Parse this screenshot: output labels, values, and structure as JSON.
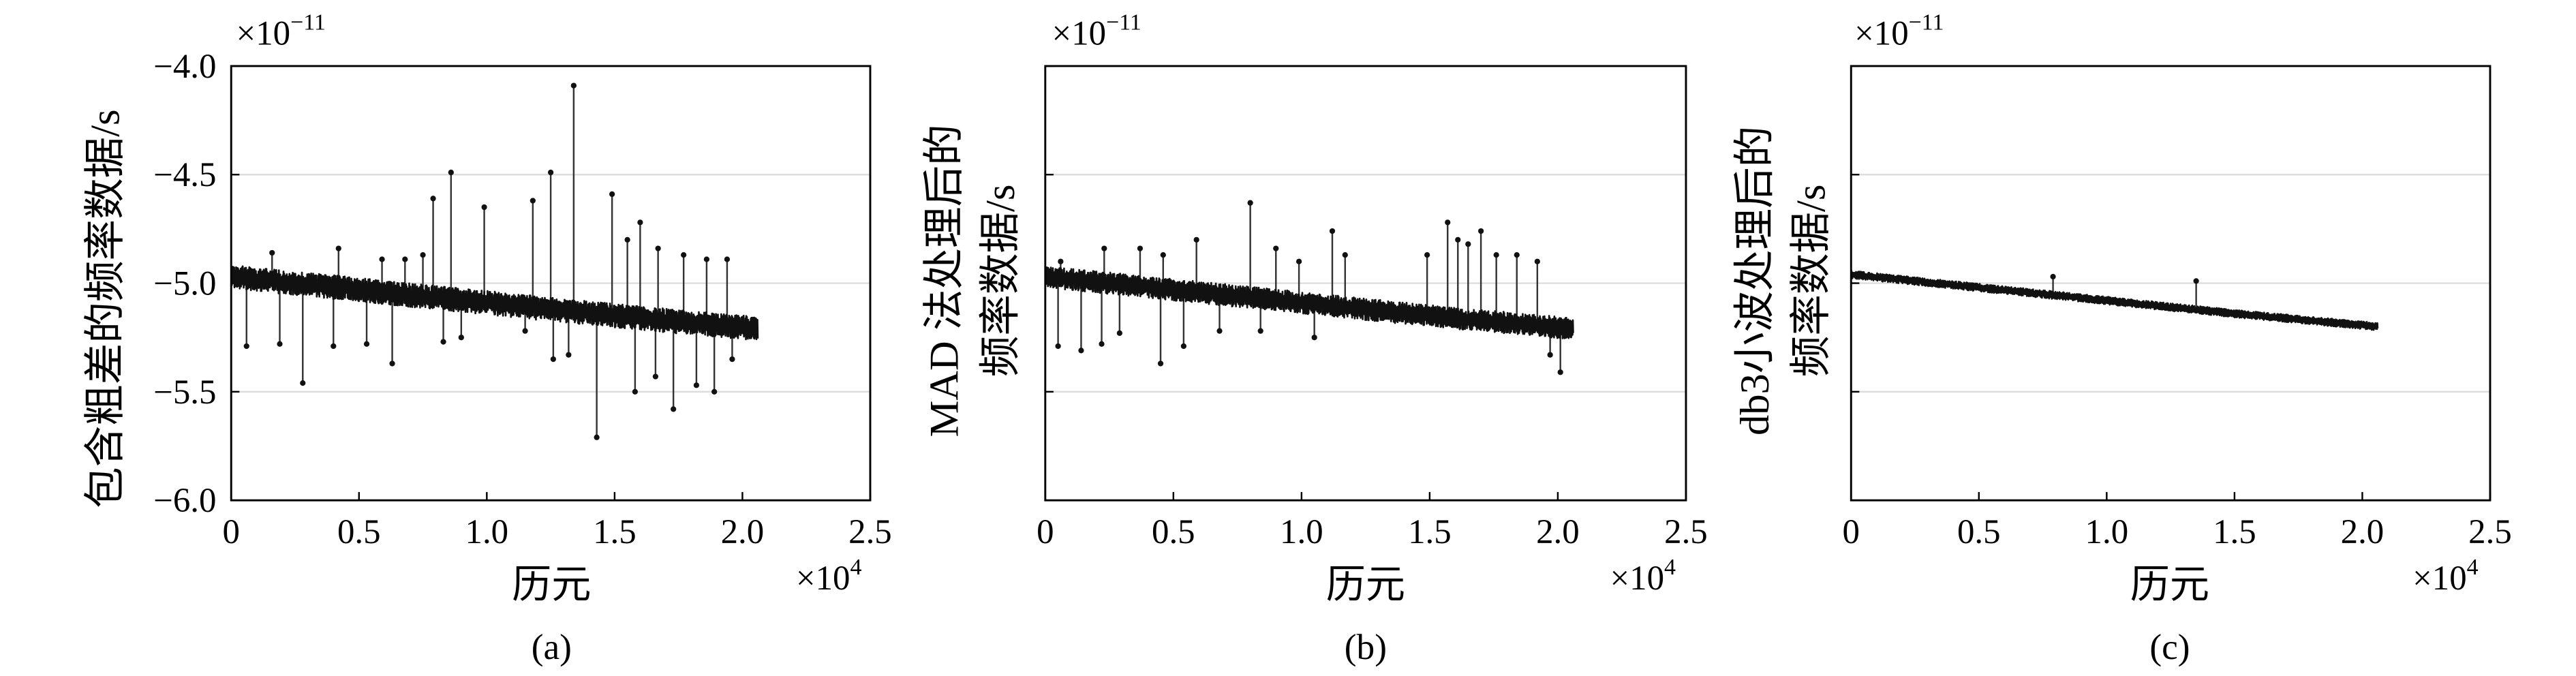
{
  "colors": {
    "line": "#111111",
    "outlier": "#333333",
    "grid": "#dddddd",
    "axis": "#000000"
  },
  "chart_data": [
    {
      "type": "line",
      "caption": "(a)",
      "xlabel": "历元",
      "ylabel_lines": [
        "包含粗差的频率数据/s"
      ],
      "x_multiplier": {
        "base": "×10",
        "exponent": "4"
      },
      "y_multiplier": {
        "base": "×10",
        "exponent": "−11"
      },
      "xlim": [
        0,
        2.5
      ],
      "ylim": [
        -6.0,
        -4.0
      ],
      "xticks": [
        0,
        0.5,
        1.0,
        1.5,
        2.0,
        2.5
      ],
      "xtick_labels": [
        "0",
        "0.5",
        "1.0",
        "1.5",
        "2.0",
        "2.5"
      ],
      "yticks": [
        -4.0,
        -4.5,
        -5.0,
        -5.5,
        -6.0
      ],
      "ytick_labels": [
        "−4.0",
        "−4.5",
        "−5.0",
        "−5.5",
        "−6.0"
      ],
      "grid": "horizontal",
      "series": [
        {
          "x": [
            0,
            0.5,
            1.0,
            1.5,
            2.06
          ],
          "y": [
            -4.97,
            -5.03,
            -5.09,
            -5.15,
            -5.21
          ]
        }
      ],
      "outliers": [
        {
          "x": 0.16,
          "y": -4.86
        },
        {
          "x": 0.42,
          "y": -4.84
        },
        {
          "x": 0.59,
          "y": -4.89
        },
        {
          "x": 0.68,
          "y": -4.89
        },
        {
          "x": 0.75,
          "y": -4.87
        },
        {
          "x": 0.79,
          "y": -4.61
        },
        {
          "x": 0.86,
          "y": -4.49
        },
        {
          "x": 0.99,
          "y": -4.65
        },
        {
          "x": 1.18,
          "y": -4.62
        },
        {
          "x": 1.25,
          "y": -4.49
        },
        {
          "x": 1.34,
          "y": -4.09
        },
        {
          "x": 1.49,
          "y": -4.59
        },
        {
          "x": 1.55,
          "y": -4.8
        },
        {
          "x": 1.6,
          "y": -4.72
        },
        {
          "x": 1.67,
          "y": -4.84
        },
        {
          "x": 1.77,
          "y": -4.87
        },
        {
          "x": 1.86,
          "y": -4.89
        },
        {
          "x": 1.94,
          "y": -4.89
        },
        {
          "x": 0.06,
          "y": -5.29
        },
        {
          "x": 0.19,
          "y": -5.28
        },
        {
          "x": 0.28,
          "y": -5.46
        },
        {
          "x": 0.4,
          "y": -5.29
        },
        {
          "x": 0.53,
          "y": -5.28
        },
        {
          "x": 0.63,
          "y": -5.37
        },
        {
          "x": 0.83,
          "y": -5.27
        },
        {
          "x": 0.9,
          "y": -5.25
        },
        {
          "x": 1.15,
          "y": -5.22
        },
        {
          "x": 1.26,
          "y": -5.35
        },
        {
          "x": 1.32,
          "y": -5.33
        },
        {
          "x": 1.43,
          "y": -5.71
        },
        {
          "x": 1.58,
          "y": -5.5
        },
        {
          "x": 1.66,
          "y": -5.43
        },
        {
          "x": 1.73,
          "y": -5.58
        },
        {
          "x": 1.82,
          "y": -5.47
        },
        {
          "x": 1.89,
          "y": -5.5
        },
        {
          "x": 1.96,
          "y": -5.35
        }
      ]
    },
    {
      "type": "line",
      "caption": "(b)",
      "xlabel": "历元",
      "ylabel_lines": [
        "MAD 法处理后的",
        "频率数据/s"
      ],
      "x_multiplier": {
        "base": "×10",
        "exponent": "4"
      },
      "y_multiplier": {
        "base": "×10",
        "exponent": "−11"
      },
      "xlim": [
        0,
        2.5
      ],
      "ylim": [
        -6.0,
        -4.0
      ],
      "xticks": [
        0,
        0.5,
        1.0,
        1.5,
        2.0,
        2.5
      ],
      "xtick_labels": [
        "0",
        "0.5",
        "1.0",
        "1.5",
        "2.0",
        "2.5"
      ],
      "yticks": [
        -4.0,
        -4.5,
        -5.0,
        -5.5,
        -6.0
      ],
      "ytick_labels": [],
      "grid": "horizontal",
      "series": [
        {
          "x": [
            0,
            0.5,
            1.0,
            1.5,
            2.06
          ],
          "y": [
            -4.97,
            -5.03,
            -5.09,
            -5.15,
            -5.21
          ]
        }
      ],
      "outliers": [
        {
          "x": 0.06,
          "y": -4.9
        },
        {
          "x": 0.23,
          "y": -4.84
        },
        {
          "x": 0.37,
          "y": -4.84
        },
        {
          "x": 0.46,
          "y": -4.87
        },
        {
          "x": 0.59,
          "y": -4.8
        },
        {
          "x": 0.8,
          "y": -4.63
        },
        {
          "x": 0.9,
          "y": -4.84
        },
        {
          "x": 0.99,
          "y": -4.9
        },
        {
          "x": 1.12,
          "y": -4.76
        },
        {
          "x": 1.17,
          "y": -4.87
        },
        {
          "x": 1.49,
          "y": -4.87
        },
        {
          "x": 1.57,
          "y": -4.72
        },
        {
          "x": 1.61,
          "y": -4.8
        },
        {
          "x": 1.65,
          "y": -4.82
        },
        {
          "x": 1.7,
          "y": -4.76
        },
        {
          "x": 1.76,
          "y": -4.87
        },
        {
          "x": 1.84,
          "y": -4.87
        },
        {
          "x": 1.92,
          "y": -4.9
        },
        {
          "x": 0.05,
          "y": -5.29
        },
        {
          "x": 0.14,
          "y": -5.31
        },
        {
          "x": 0.22,
          "y": -5.28
        },
        {
          "x": 0.29,
          "y": -5.23
        },
        {
          "x": 0.45,
          "y": -5.37
        },
        {
          "x": 0.54,
          "y": -5.29
        },
        {
          "x": 0.68,
          "y": -5.22
        },
        {
          "x": 0.84,
          "y": -5.22
        },
        {
          "x": 1.05,
          "y": -5.25
        },
        {
          "x": 1.97,
          "y": -5.33
        },
        {
          "x": 2.01,
          "y": -5.41
        }
      ]
    },
    {
      "type": "line",
      "caption": "(c)",
      "xlabel": "历元",
      "ylabel_lines": [
        "db3小波处理后的",
        "频率数据/s"
      ],
      "x_multiplier": {
        "base": "×10",
        "exponent": "4"
      },
      "y_multiplier": {
        "base": "×10",
        "exponent": "−11"
      },
      "xlim": [
        0,
        2.5
      ],
      "ylim": [
        -6.0,
        -4.0
      ],
      "xticks": [
        0,
        0.5,
        1.0,
        1.5,
        2.0,
        2.5
      ],
      "xtick_labels": [
        "0",
        "0.5",
        "1.0",
        "1.5",
        "2.0",
        "2.5"
      ],
      "yticks": [
        -4.0,
        -4.5,
        -5.0,
        -5.5,
        -6.0
      ],
      "ytick_labels": [],
      "grid": "horizontal",
      "series": [
        {
          "x": [
            0,
            0.5,
            1.0,
            1.5,
            2.06
          ],
          "y": [
            -4.96,
            -5.02,
            -5.08,
            -5.14,
            -5.2
          ]
        }
      ],
      "outliers": [
        {
          "x": 0.79,
          "y": -4.97
        },
        {
          "x": 1.35,
          "y": -4.99
        }
      ]
    }
  ]
}
